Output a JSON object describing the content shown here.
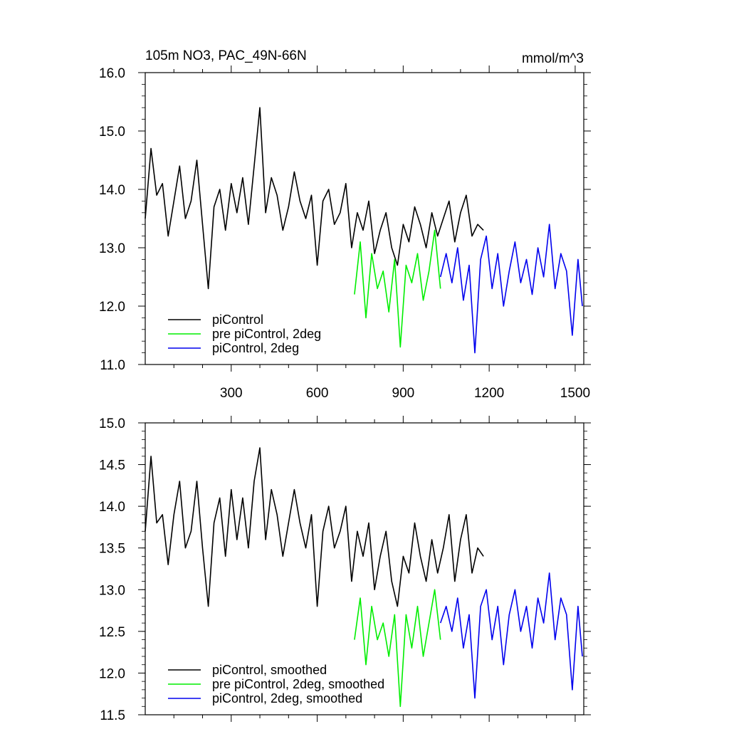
{
  "figure": {
    "title": "105m NO3, PAC_49N-66N",
    "units": "mmol/m^3"
  },
  "colors": {
    "piControl": "#000000",
    "pre_2deg": "#00ee00",
    "piControl_2deg": "#0000ee"
  },
  "chart_data": [
    {
      "type": "line",
      "title": "105m NO3, PAC_49N-66N",
      "units": "mmol/m^3",
      "xlabel": "",
      "ylabel": "",
      "xlim": [
        0,
        1530
      ],
      "ylim": [
        11.0,
        16.0
      ],
      "xticks": [
        300,
        600,
        900,
        1200,
        1500
      ],
      "xtick_labels": [
        "300",
        "600",
        "900",
        "1200",
        "1500"
      ],
      "yticks": [
        11.0,
        12.0,
        13.0,
        14.0,
        15.0,
        16.0
      ],
      "ytick_labels": [
        "11.0",
        "12.0",
        "13.0",
        "14.0",
        "15.0",
        "16.0"
      ],
      "legend_position": "bottom-left",
      "grid": false,
      "series": [
        {
          "name": "piControl",
          "color": "#000000",
          "x": [
            0,
            20,
            40,
            60,
            80,
            100,
            120,
            140,
            160,
            180,
            200,
            220,
            240,
            260,
            280,
            300,
            320,
            340,
            360,
            380,
            400,
            420,
            440,
            460,
            480,
            500,
            520,
            540,
            560,
            580,
            600,
            620,
            640,
            660,
            680,
            700,
            720,
            740,
            760,
            780,
            800,
            820,
            840,
            860,
            880,
            900,
            920,
            940,
            960,
            980,
            1000,
            1020,
            1040,
            1060,
            1080,
            1100,
            1120,
            1140,
            1160,
            1180
          ],
          "y": [
            13.5,
            14.7,
            13.9,
            14.1,
            13.2,
            13.8,
            14.4,
            13.5,
            13.8,
            14.5,
            13.4,
            12.3,
            13.7,
            14.0,
            13.3,
            14.1,
            13.6,
            14.2,
            13.4,
            14.4,
            15.4,
            13.6,
            14.2,
            13.9,
            13.3,
            13.7,
            14.3,
            13.8,
            13.5,
            13.9,
            12.7,
            13.8,
            14.0,
            13.4,
            13.6,
            14.1,
            13.0,
            13.6,
            13.3,
            13.8,
            12.9,
            13.3,
            13.6,
            13.0,
            12.7,
            13.4,
            13.1,
            13.7,
            13.4,
            13.0,
            13.6,
            13.2,
            13.5,
            13.8,
            13.1,
            13.6,
            13.9,
            13.2,
            13.4,
            13.3
          ]
        },
        {
          "name": "pre piControl, 2deg",
          "color": "#00ee00",
          "x": [
            730,
            750,
            770,
            790,
            810,
            830,
            850,
            870,
            890,
            910,
            930,
            950,
            970,
            990,
            1010,
            1030
          ],
          "y": [
            12.2,
            13.1,
            11.8,
            12.9,
            12.3,
            12.6,
            11.9,
            12.8,
            11.3,
            12.7,
            12.4,
            12.9,
            12.1,
            12.6,
            13.3,
            12.3
          ]
        },
        {
          "name": "piControl, 2deg",
          "color": "#0000ee",
          "x": [
            1030,
            1050,
            1070,
            1090,
            1110,
            1130,
            1150,
            1170,
            1190,
            1210,
            1230,
            1250,
            1270,
            1290,
            1310,
            1330,
            1350,
            1370,
            1390,
            1410,
            1430,
            1450,
            1470,
            1490,
            1510,
            1525
          ],
          "y": [
            12.5,
            12.9,
            12.4,
            13.0,
            12.1,
            12.7,
            11.2,
            12.8,
            13.2,
            12.3,
            12.9,
            12.0,
            12.6,
            13.1,
            12.4,
            12.8,
            12.2,
            13.0,
            12.5,
            13.4,
            12.3,
            12.9,
            12.6,
            11.5,
            12.8,
            12.0
          ]
        }
      ]
    },
    {
      "type": "line",
      "title": "",
      "xlabel": "",
      "ylabel": "",
      "xlim": [
        0,
        1530
      ],
      "ylim": [
        11.5,
        15.0
      ],
      "xticks": [
        300,
        600,
        900,
        1200,
        1500
      ],
      "xtick_labels": [],
      "yticks": [
        11.5,
        12.0,
        12.5,
        13.0,
        13.5,
        14.0,
        14.5,
        15.0
      ],
      "ytick_labels": [
        "11.5",
        "12.0",
        "12.5",
        "13.0",
        "13.5",
        "14.0",
        "14.5",
        "15.0"
      ],
      "legend_position": "bottom-left",
      "grid": false,
      "series": [
        {
          "name": "piControl, smoothed",
          "color": "#000000",
          "x": [
            0,
            20,
            40,
            60,
            80,
            100,
            120,
            140,
            160,
            180,
            200,
            220,
            240,
            260,
            280,
            300,
            320,
            340,
            360,
            380,
            400,
            420,
            440,
            460,
            480,
            500,
            520,
            540,
            560,
            580,
            600,
            620,
            640,
            660,
            680,
            700,
            720,
            740,
            760,
            780,
            800,
            820,
            840,
            860,
            880,
            900,
            920,
            940,
            960,
            980,
            1000,
            1020,
            1040,
            1060,
            1080,
            1100,
            1120,
            1140,
            1160,
            1180
          ],
          "y": [
            13.7,
            14.6,
            13.8,
            13.9,
            13.3,
            13.9,
            14.3,
            13.5,
            13.7,
            14.3,
            13.5,
            12.8,
            13.8,
            14.1,
            13.4,
            14.2,
            13.6,
            14.1,
            13.5,
            14.3,
            14.7,
            13.6,
            14.2,
            13.9,
            13.4,
            13.8,
            14.2,
            13.8,
            13.5,
            13.9,
            12.8,
            13.7,
            14.0,
            13.5,
            13.7,
            14.0,
            13.1,
            13.7,
            13.4,
            13.8,
            13.0,
            13.4,
            13.7,
            13.1,
            12.8,
            13.4,
            13.2,
            13.8,
            13.4,
            13.1,
            13.6,
            13.2,
            13.5,
            13.9,
            13.1,
            13.6,
            13.9,
            13.2,
            13.5,
            13.4
          ]
        },
        {
          "name": "pre piControl, 2deg, smoothed",
          "color": "#00ee00",
          "x": [
            730,
            750,
            770,
            790,
            810,
            830,
            850,
            870,
            890,
            910,
            930,
            950,
            970,
            990,
            1010,
            1030
          ],
          "y": [
            12.4,
            12.9,
            12.1,
            12.8,
            12.4,
            12.6,
            12.2,
            12.7,
            11.6,
            12.7,
            12.3,
            12.8,
            12.2,
            12.6,
            13.0,
            12.4
          ]
        },
        {
          "name": "piControl, 2deg, smoothed",
          "color": "#0000ee",
          "x": [
            1030,
            1050,
            1070,
            1090,
            1110,
            1130,
            1150,
            1170,
            1190,
            1210,
            1230,
            1250,
            1270,
            1290,
            1310,
            1330,
            1350,
            1370,
            1390,
            1410,
            1430,
            1450,
            1470,
            1490,
            1510,
            1525
          ],
          "y": [
            12.6,
            12.8,
            12.5,
            12.9,
            12.3,
            12.7,
            11.7,
            12.8,
            13.0,
            12.4,
            12.8,
            12.1,
            12.7,
            13.0,
            12.5,
            12.8,
            12.3,
            12.9,
            12.6,
            13.2,
            12.4,
            12.9,
            12.7,
            11.8,
            12.8,
            12.2
          ]
        }
      ]
    }
  ]
}
